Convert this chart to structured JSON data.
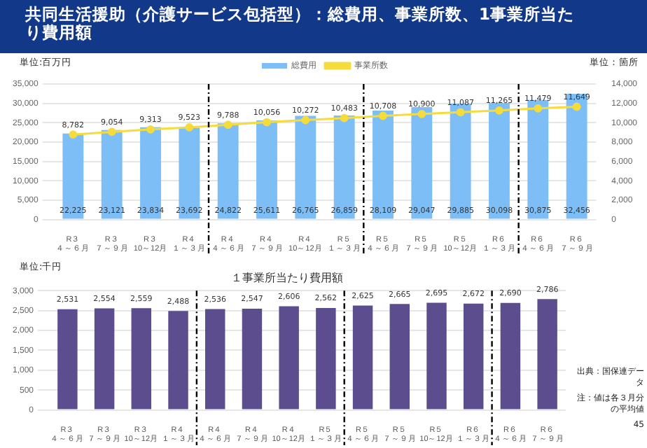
{
  "chart_data": [
    {
      "type": "bar",
      "title": "共同生活援助（介護サービス包括型）：総費用、事業所数、1事業所当たり費用額",
      "ylabel": "単位:百万円",
      "y2label": "単位：箇所",
      "categories": [
        "R３４～６月",
        "R３７～９月",
        "R３10～12月",
        "R４１～３月",
        "R４４～６月",
        "R４７～９月",
        "R４10～12月",
        "R５１～３月",
        "R５４～６月",
        "R５７～９月",
        "R５10～12月",
        "R６１～３月",
        "R６４～６月",
        "R６７～９月"
      ],
      "series": [
        {
          "name": "総費用",
          "type": "bar",
          "color": "#7dbef7",
          "values": [
            22225,
            23121,
            23834,
            23692,
            24822,
            25611,
            26765,
            26859,
            28109,
            29047,
            29885,
            30098,
            30875,
            32456
          ],
          "value_labels": [
            "22,225",
            "23,121",
            "23,834",
            "23,692",
            "24,822",
            "25,611",
            "26,765",
            "26,859",
            "28,109",
            "29,047",
            "29,885",
            "30,098",
            "30,875",
            "32,456"
          ]
        },
        {
          "name": "事業所数",
          "type": "line",
          "axis": "y2",
          "color": "#f5dc3c",
          "values": [
            8782,
            9054,
            9313,
            9523,
            9788,
            10056,
            10272,
            10483,
            10708,
            10900,
            11087,
            11265,
            11479,
            11649
          ],
          "value_labels": [
            "8,782",
            "9,054",
            "9,313",
            "9,523",
            "9,788",
            "10,056",
            "10,272",
            "10,483",
            "10,708",
            "10,900",
            "11,087",
            "11,265",
            "11,479",
            "11,649"
          ]
        }
      ],
      "ylim": [
        0,
        35000
      ],
      "yticks": [
        {
          "value": 0,
          "label": "0"
        },
        {
          "value": 5000,
          "label": "5,000"
        },
        {
          "value": 10000,
          "label": "10,000"
        },
        {
          "value": 15000,
          "label": "15,000"
        },
        {
          "value": 20000,
          "label": "20,000"
        },
        {
          "value": 25000,
          "label": "25,000"
        },
        {
          "value": 30000,
          "label": "30,000"
        },
        {
          "value": 35000,
          "label": "35,000"
        }
      ],
      "y2lim": [
        0,
        14000
      ],
      "y2ticks": [
        {
          "value": 0,
          "label": "0"
        },
        {
          "value": 2000,
          "label": "2,000"
        },
        {
          "value": 4000,
          "label": "4,000"
        },
        {
          "value": 6000,
          "label": "6,000"
        },
        {
          "value": 8000,
          "label": "8,000"
        },
        {
          "value": 10000,
          "label": "10,000"
        },
        {
          "value": 12000,
          "label": "12,000"
        },
        {
          "value": 14000,
          "label": "14,000"
        }
      ],
      "grid": "y",
      "legend": "top",
      "marker": "circle"
    },
    {
      "type": "bar",
      "title": "１事業所当たり費用額",
      "ylabel": "単位:千円",
      "categories": [
        "R３４～６月",
        "R３７～９月",
        "R３10～12月",
        "R４１～３月",
        "R４４～６月",
        "R４７～９月",
        "R４10～12月",
        "R５１～３月",
        "R５４～６月",
        "R５７～９月",
        "R５10～12月",
        "R６１～３月",
        "R６４～６月",
        "R６７～９月"
      ],
      "values": [
        2531,
        2554,
        2559,
        2488,
        2536,
        2547,
        2606,
        2562,
        2625,
        2665,
        2695,
        2672,
        2690,
        2786
      ],
      "color": "#5c4e8e",
      "value_labels": [
        "2,531",
        "2,554",
        "2,559",
        "2,488",
        "2,536",
        "2,547",
        "2,606",
        "2,562",
        "2,625",
        "2,665",
        "2,695",
        "2,672",
        "2,690",
        "2,786"
      ],
      "ylim": [
        0,
        3000
      ],
      "yticks": [
        {
          "value": 0,
          "label": "0"
        },
        500,
        {
          "value": 1000,
          "label": "1,000"
        },
        {
          "value": 1500,
          "label": "1,500"
        },
        {
          "value": 2000,
          "label": "2,000"
        },
        {
          "value": 2500,
          "label": "2,500"
        },
        {
          "value": 3000,
          "label": "3,000"
        }
      ],
      "grid": "y",
      "annotations": [
        "出典：国保連データ",
        "注：値は各３月分の平均値",
        "45"
      ]
    }
  ]
}
